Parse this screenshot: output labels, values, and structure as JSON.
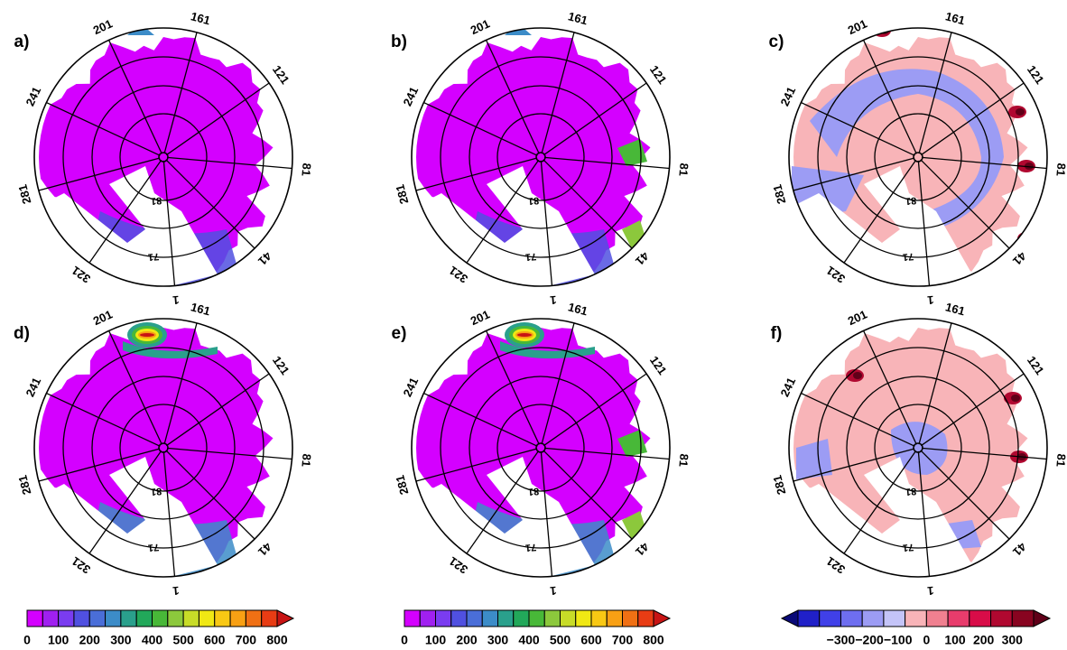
{
  "panels": [
    {
      "id": "a",
      "label": "a)",
      "kind": "abs",
      "level": "low"
    },
    {
      "id": "b",
      "label": "b)",
      "kind": "abs",
      "level": "low2"
    },
    {
      "id": "c",
      "label": "c)",
      "kind": "diff",
      "level": "c"
    },
    {
      "id": "d",
      "label": "d)",
      "kind": "abs",
      "level": "high"
    },
    {
      "id": "e",
      "label": "e)",
      "kind": "abs",
      "level": "high2"
    },
    {
      "id": "f",
      "label": "f)",
      "kind": "diff",
      "level": "f"
    }
  ],
  "radial_labels": [
    "201",
    "161",
    "121",
    "81",
    "41",
    "1",
    "321",
    "281",
    "241"
  ],
  "lat_labels": [
    "81",
    "71"
  ],
  "colorbars": [
    {
      "id": "abs-left",
      "ticks": [
        "0",
        "100",
        "200",
        "300",
        "400",
        "500",
        "600",
        "700",
        "800"
      ],
      "colors": [
        "#d400ff",
        "#a020f0",
        "#7a3cf0",
        "#5050e0",
        "#4a6ed8",
        "#3c8cc8",
        "#2aa08c",
        "#22a85a",
        "#48b838",
        "#8cc83c",
        "#c8dc28",
        "#f0e814",
        "#f8c814",
        "#f8a014",
        "#f07014",
        "#e83c14",
        "#c81414"
      ]
    },
    {
      "id": "abs-right",
      "ticks": [
        "0",
        "100",
        "200",
        "300",
        "400",
        "500",
        "600",
        "700",
        "800"
      ],
      "colors": [
        "#d400ff",
        "#a020f0",
        "#7a3cf0",
        "#5050e0",
        "#4a6ed8",
        "#3c8cc8",
        "#2aa08c",
        "#22a85a",
        "#48b838",
        "#8cc83c",
        "#c8dc28",
        "#f0e814",
        "#f8c814",
        "#f8a014",
        "#f07014",
        "#e83c14",
        "#c81414"
      ]
    },
    {
      "id": "diff",
      "ticks": [
        "−300",
        "−200",
        "−100",
        "0",
        "100",
        "200",
        "300"
      ],
      "colors": [
        "#0a0a78",
        "#2020c8",
        "#4040e8",
        "#6e6ef0",
        "#9c9cf4",
        "#c4c4f8",
        "#f8b4b8",
        "#f08090",
        "#e83c6c",
        "#d80c48",
        "#b00830",
        "#880420",
        "#600018"
      ]
    }
  ]
}
